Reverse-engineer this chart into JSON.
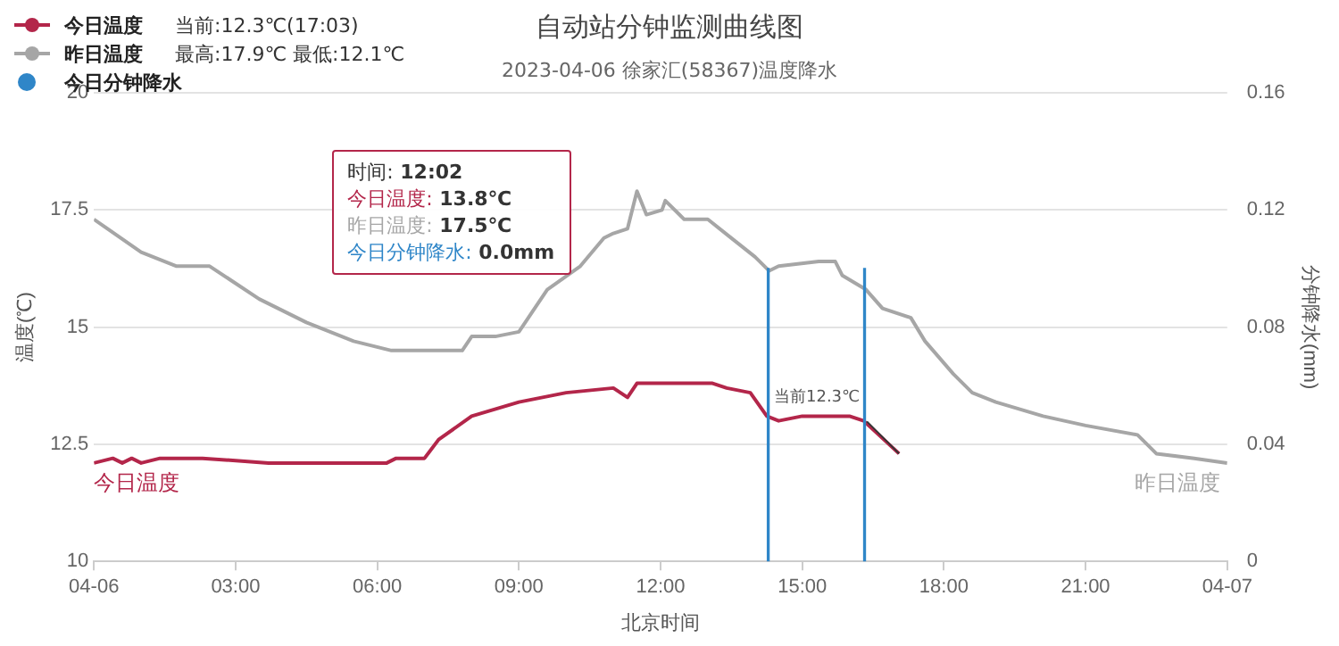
{
  "chart_data": {
    "type": "line",
    "title": "自动站分钟监测曲线图",
    "subtitle": "2023-04-06 徐家汇(58367)温度降水",
    "xlabel": "北京时间",
    "ylabel": "温度(℃)",
    "y2label": "分钟降水(mm)",
    "xlim": [
      0,
      24
    ],
    "xticks": [
      {
        "value": 0,
        "label": "04-06"
      },
      {
        "value": 3,
        "label": "03:00"
      },
      {
        "value": 6,
        "label": "06:00"
      },
      {
        "value": 9,
        "label": "09:00"
      },
      {
        "value": 12,
        "label": "12:00"
      },
      {
        "value": 15,
        "label": "15:00"
      },
      {
        "value": 18,
        "label": "18:00"
      },
      {
        "value": 21,
        "label": "21:00"
      },
      {
        "value": 24,
        "label": "04-07"
      }
    ],
    "ylim": [
      10,
      20
    ],
    "yticks": [
      10,
      12.5,
      15,
      17.5,
      20
    ],
    "y2lim": [
      0,
      0.16
    ],
    "y2ticks": [
      0,
      0.04,
      0.08,
      0.12,
      0.16
    ],
    "grid": "y",
    "legend": "top left",
    "marker": "none",
    "line_style": "solid",
    "series": [
      {
        "name": "今日温度",
        "color": "#b3264a",
        "x": [
          0,
          0.4,
          0.6,
          0.8,
          1.0,
          1.4,
          1.6,
          2.3,
          3.7,
          6.2,
          6.4,
          7.0,
          7.3,
          8.0,
          9.0,
          10.0,
          11.0,
          11.3,
          11.5,
          12.03,
          13.1,
          13.4,
          13.9,
          14.25,
          14.5,
          15.0,
          16.0,
          16.3,
          17.05
        ],
        "values": [
          12.1,
          12.2,
          12.1,
          12.2,
          12.1,
          12.2,
          12.2,
          12.2,
          12.1,
          12.1,
          12.2,
          12.2,
          12.6,
          13.1,
          13.4,
          13.6,
          13.7,
          13.5,
          13.8,
          13.8,
          13.8,
          13.7,
          13.6,
          13.1,
          13.0,
          13.1,
          13.1,
          13.0,
          12.3
        ]
      },
      {
        "name": "昨日温度",
        "color": "#a6a6a6",
        "x": [
          0,
          1.0,
          1.75,
          2.45,
          3.5,
          4.5,
          5.5,
          6.3,
          7.0,
          7.8,
          8.0,
          8.5,
          9.0,
          9.2,
          9.6,
          10.3,
          10.8,
          11.0,
          11.3,
          11.5,
          11.7,
          12.03,
          12.1,
          12.5,
          13.0,
          13.5,
          14.0,
          14.3,
          14.5,
          15.35,
          15.7,
          15.85,
          16.35,
          16.7,
          17.3,
          17.6,
          18.2,
          18.6,
          19.1,
          20.1,
          21.0,
          22.1,
          22.5,
          23.3,
          24
        ],
        "values": [
          17.3,
          16.6,
          16.3,
          16.3,
          15.6,
          15.1,
          14.7,
          14.5,
          14.5,
          14.5,
          14.8,
          14.8,
          14.9,
          15.2,
          15.8,
          16.3,
          16.9,
          17.0,
          17.1,
          17.9,
          17.4,
          17.5,
          17.7,
          17.3,
          17.3,
          16.9,
          16.5,
          16.2,
          16.3,
          16.4,
          16.4,
          16.1,
          15.8,
          15.4,
          15.2,
          14.7,
          14.0,
          13.6,
          13.4,
          13.1,
          12.9,
          12.7,
          12.3,
          12.2,
          12.1
        ]
      },
      {
        "name": "今日分钟降水",
        "type": "bar",
        "axis": "y2",
        "color": "#2f86c8",
        "x": [
          14.28,
          16.32
        ],
        "values": [
          0.1,
          0.1
        ]
      }
    ],
    "annotations": [
      "当前:12.3℃(17:03)",
      "最高:17.9℃ 最低:12.1℃",
      "时间: 12:02",
      "今日温度: 13.8℃",
      "昨日温度: 17.5℃",
      "今日分钟降水: 0.0mm",
      {
        "text": "当前12.3℃",
        "x": 17.05,
        "y": 12.3
      }
    ]
  }
}
